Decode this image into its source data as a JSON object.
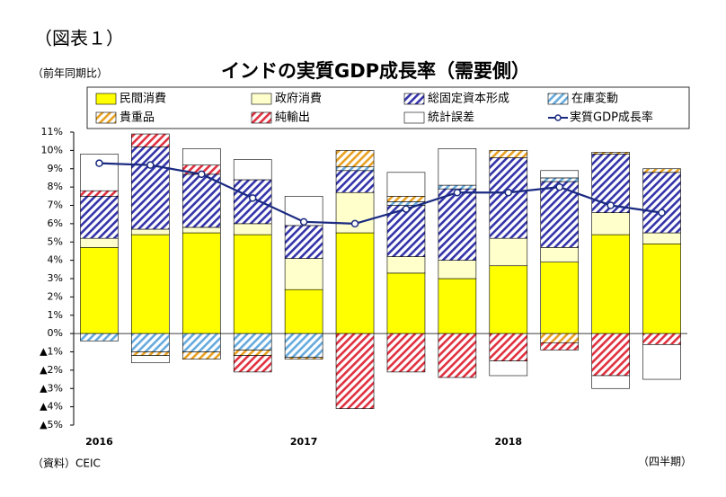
{
  "chart_data": {
    "type": "bar",
    "figure_label": "（図表１）",
    "title": "インドの実質GDP成長率（需要側）",
    "y_label": "（前年同期比）",
    "source": "（資料）CEIC",
    "x_label": "（四半期）",
    "categories": [
      "2016",
      null,
      null,
      null,
      "2017",
      null,
      null,
      null,
      "2018",
      null,
      null,
      null
    ],
    "series": [
      {
        "name": "民間消費",
        "color": "#ffff00",
        "hatched": false,
        "values": [
          4.7,
          5.4,
          5.5,
          5.4,
          2.4,
          5.5,
          3.3,
          3.0,
          3.7,
          3.9,
          5.4,
          4.9
        ]
      },
      {
        "name": "政府消費",
        "color": "#ffffcc",
        "hatched": false,
        "values": [
          0.5,
          0.3,
          0.3,
          0.6,
          1.7,
          2.2,
          0.9,
          1.0,
          1.5,
          0.8,
          1.2,
          0.6
        ]
      },
      {
        "name": "総固定資本形成",
        "color": "#3333aa",
        "hatched": true,
        "values": [
          2.3,
          4.5,
          2.9,
          2.4,
          1.8,
          1.2,
          2.8,
          3.9,
          4.4,
          3.6,
          3.2,
          3.3
        ]
      },
      {
        "name": "在庫変動",
        "color": "#66aadd",
        "hatched": true,
        "values": [
          -0.4,
          -1.0,
          -1.0,
          -0.9,
          -1.3,
          0.2,
          0.2,
          0.2,
          0,
          0.2,
          0,
          0
        ]
      },
      {
        "name": "貴重品",
        "color": "#e8a020",
        "hatched": true,
        "values": [
          0,
          -0.2,
          -0.4,
          -0.3,
          -0.1,
          0.9,
          0.3,
          0,
          0.4,
          -0.5,
          0.1,
          0.2
        ]
      },
      {
        "name": "純輸出",
        "color": "#e03040",
        "hatched": true,
        "values": [
          0.3,
          0.7,
          0.5,
          -0.9,
          0,
          -4.1,
          -2.1,
          -2.4,
          -1.5,
          -0.4,
          -2.3,
          -0.6
        ]
      },
      {
        "name": "統計誤差",
        "color": "#ffffff",
        "hatched": false,
        "values": [
          2.0,
          -0.4,
          0.9,
          1.1,
          1.6,
          0,
          1.3,
          2.0,
          -0.8,
          0.4,
          -0.7,
          -1.9
        ]
      },
      {
        "name": "実質GDP成長率",
        "color": "#1a2a80",
        "kind": "line",
        "values": [
          9.3,
          9.2,
          8.7,
          7.4,
          6.1,
          6.0,
          6.8,
          7.7,
          7.7,
          8.0,
          7.0,
          6.6
        ]
      }
    ],
    "ylim": [
      -5,
      11
    ],
    "yticks": [
      {
        "value": 11,
        "label": "11%"
      },
      {
        "value": 10,
        "label": "10%"
      },
      {
        "value": 9,
        "label": "9%"
      },
      {
        "value": 8,
        "label": "8%"
      },
      {
        "value": 7,
        "label": "7%"
      },
      {
        "value": 6,
        "label": "6%"
      },
      {
        "value": 5,
        "label": "5%"
      },
      {
        "value": 4,
        "label": "4%"
      },
      {
        "value": 3,
        "label": "3%"
      },
      {
        "value": 2,
        "label": "2%"
      },
      {
        "value": 1,
        "label": "1%"
      },
      {
        "value": 0,
        "label": "0%"
      },
      {
        "value": -1,
        "label": "▲1%"
      },
      {
        "value": -2,
        "label": "▲2%"
      },
      {
        "value": -3,
        "label": "▲3%"
      },
      {
        "value": -4,
        "label": "▲4%"
      },
      {
        "value": -5,
        "label": "▲5%"
      }
    ]
  }
}
